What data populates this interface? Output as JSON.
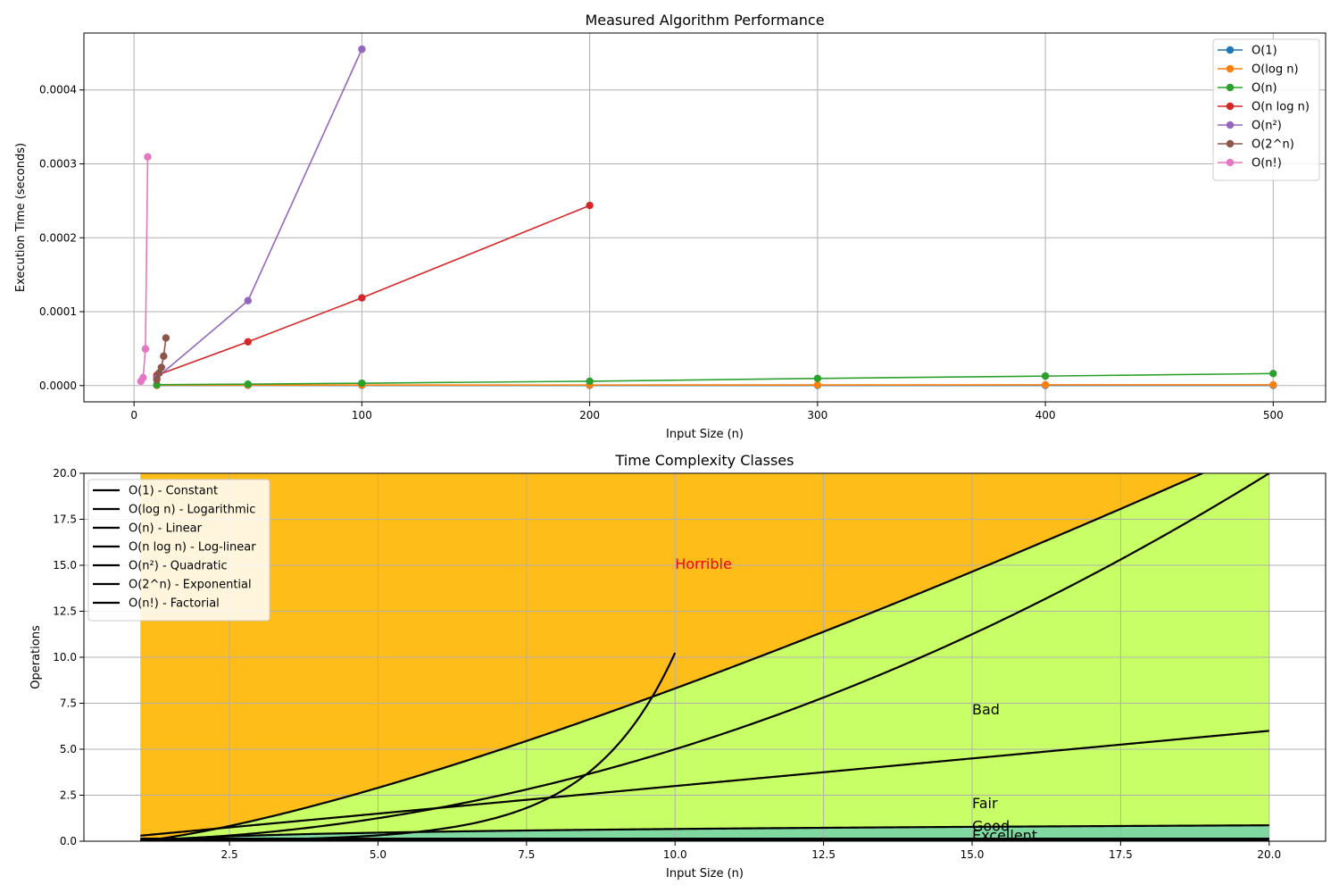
{
  "chart_data": [
    {
      "type": "line",
      "title": "Measured Algorithm Performance",
      "xlabel": "Input Size (n)",
      "ylabel": "Execution Time (seconds)",
      "xlim": [
        -22,
        523
      ],
      "ylim": [
        -2.2e-05,
        0.000477
      ],
      "xticks": [
        0,
        100,
        200,
        300,
        400,
        500
      ],
      "yticks": [
        0.0,
        0.0001,
        0.0002,
        0.0003,
        0.0004
      ],
      "xtick_labels": [
        "0",
        "100",
        "200",
        "300",
        "400",
        "500"
      ],
      "ytick_labels": [
        "0.0000",
        "0.0001",
        "0.0002",
        "0.0003",
        "0.0004"
      ],
      "grid": true,
      "legend": "top-right",
      "series": [
        {
          "name": "O(1)",
          "color": "#1f77b4",
          "x": [
            10,
            50,
            100,
            200,
            300,
            400,
            500
          ],
          "y": [
            3e-07,
            3e-07,
            3e-07,
            3e-07,
            3e-07,
            3e-07,
            3e-07
          ]
        },
        {
          "name": "O(log n)",
          "color": "#ff7f0e",
          "x": [
            10,
            50,
            100,
            200,
            300,
            400,
            500
          ],
          "y": [
            5e-07,
            6e-07,
            7e-07,
            8e-07,
            9e-07,
            1e-06,
            1e-06
          ]
        },
        {
          "name": "O(n)",
          "color": "#2ca02c",
          "x": [
            10,
            50,
            100,
            200,
            300,
            400,
            500
          ],
          "y": [
            1.2e-06,
            1.9e-06,
            3.2e-06,
            5.9e-06,
            9.7e-06,
            1.29e-05,
            1.63e-05
          ]
        },
        {
          "name": "O(n log n)",
          "color": "#d62728",
          "x": [
            10,
            50,
            100,
            200
          ],
          "y": [
            1.4e-05,
            5.92e-05,
            0.0001187,
            0.0002437
          ]
        },
        {
          "name": "O(n²)",
          "color": "#9467bd",
          "x": [
            10,
            50,
            100
          ],
          "y": [
            1.06e-05,
            0.0001149,
            0.0004551
          ]
        },
        {
          "name": "O(2^n)",
          "color": "#8c564b",
          "x": [
            10,
            11,
            12,
            13,
            14
          ],
          "y": [
            8e-06,
            1.7e-05,
            2.45e-05,
            3.98e-05,
            6.45e-05
          ]
        },
        {
          "name": "O(n!)",
          "color": "#e377c2",
          "x": [
            3,
            4,
            5,
            6
          ],
          "y": [
            5.8e-06,
            1.08e-05,
            4.96e-05,
            0.0003094
          ]
        }
      ]
    },
    {
      "type": "area",
      "title": "Time Complexity Classes",
      "xlabel": "Input Size (n)",
      "ylabel": "Operations",
      "xlim": [
        0.05,
        20.95
      ],
      "ylim": [
        0,
        20
      ],
      "xticks": [
        2.5,
        5.0,
        7.5,
        10.0,
        12.5,
        15.0,
        17.5,
        20.0
      ],
      "yticks": [
        0.0,
        2.5,
        5.0,
        7.5,
        10.0,
        12.5,
        15.0,
        17.5,
        20.0
      ],
      "xtick_labels": [
        "2.5",
        "5.0",
        "7.5",
        "10.0",
        "12.5",
        "15.0",
        "17.5",
        "20.0"
      ],
      "ytick_labels": [
        "0.0",
        "2.5",
        "5.0",
        "7.5",
        "10.0",
        "12.5",
        "15.0",
        "17.5",
        "20.0"
      ],
      "grid": true,
      "legend": "top-left",
      "series": [
        {
          "name": "O(1) - Constant"
        },
        {
          "name": "O(log n) - Logarithmic"
        },
        {
          "name": "O(n) - Linear"
        },
        {
          "name": "O(n log n) - Log-linear"
        },
        {
          "name": "O(n²) - Quadratic"
        },
        {
          "name": "O(2^n) - Exponential"
        },
        {
          "name": "O(n!) - Factorial"
        }
      ],
      "regions": [
        {
          "label": "Excellent",
          "color": "#0aaa3c",
          "fill": "#1aaa55",
          "label_at": [
            15.0,
            0.05
          ]
        },
        {
          "label": "Good",
          "color": "#000000",
          "fill": "#7fd8a0",
          "label_at": [
            15.0,
            0.55
          ]
        },
        {
          "label": "Fair",
          "color": "#000000",
          "fill": "#c8ff66",
          "label_at": [
            15.0,
            1.8
          ]
        },
        {
          "label": "Bad",
          "color": "#000000",
          "fill": "#ffff4d",
          "label_at": [
            15.0,
            6.9
          ]
        },
        {
          "label": "Horrible",
          "color": "#ff0000",
          "fill": "#ffbd1a",
          "label_at": [
            10.0,
            14.8
          ]
        }
      ]
    }
  ]
}
